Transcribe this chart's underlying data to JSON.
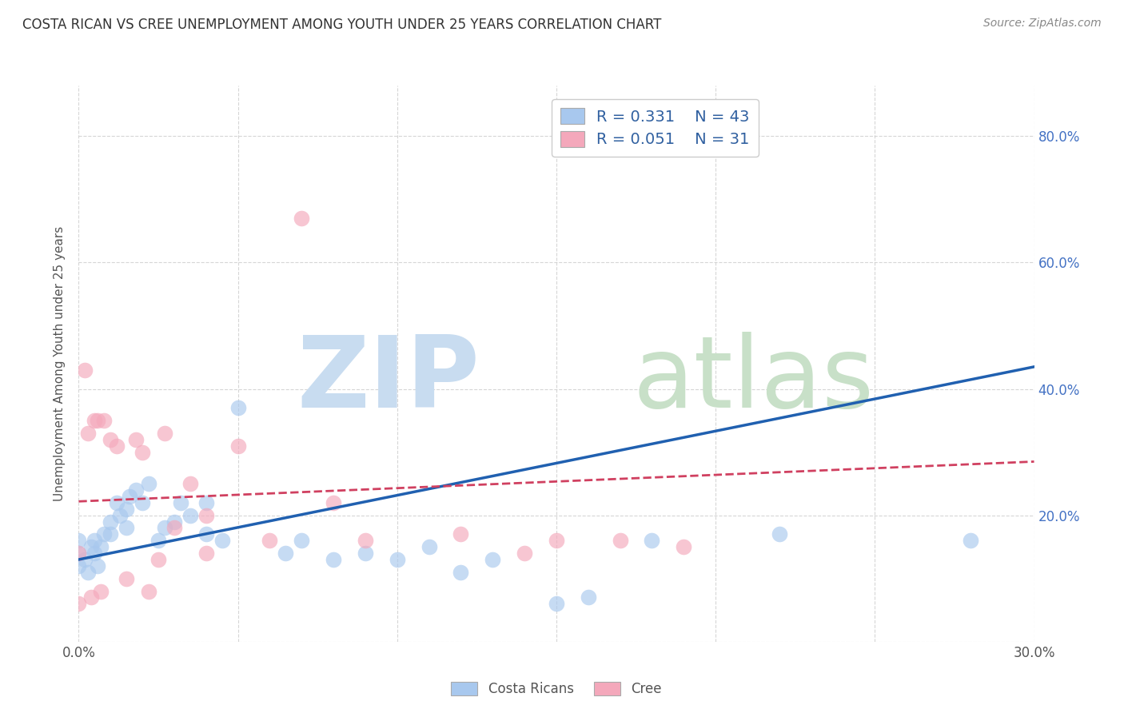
{
  "title": "COSTA RICAN VS CREE UNEMPLOYMENT AMONG YOUTH UNDER 25 YEARS CORRELATION CHART",
  "source": "Source: ZipAtlas.com",
  "ylabel": "Unemployment Among Youth under 25 years",
  "xlim": [
    0.0,
    0.3
  ],
  "ylim": [
    0.0,
    0.88
  ],
  "xticks": [
    0.0,
    0.05,
    0.1,
    0.15,
    0.2,
    0.25,
    0.3
  ],
  "xticklabels": [
    "0.0%",
    "",
    "",
    "",
    "",
    "",
    "30.0%"
  ],
  "yticks": [
    0.0,
    0.2,
    0.4,
    0.6,
    0.8
  ],
  "right_yticks": [
    0.0,
    0.2,
    0.4,
    0.6,
    0.8
  ],
  "right_yticklabels": [
    "",
    "20.0%",
    "40.0%",
    "60.0%",
    "80.0%"
  ],
  "costa_rican_color": "#A8C8EE",
  "cree_color": "#F4A8BB",
  "costa_rican_line_color": "#2060B0",
  "cree_line_color": "#D04060",
  "costa_rican_R": 0.331,
  "costa_rican_N": 43,
  "cree_R": 0.051,
  "cree_N": 31,
  "costa_rican_trend_x": [
    0.0,
    0.3
  ],
  "costa_rican_trend_y": [
    0.13,
    0.435
  ],
  "cree_trend_x": [
    0.0,
    0.3
  ],
  "cree_trend_y": [
    0.222,
    0.285
  ],
  "costa_rican_scatter_x": [
    0.0,
    0.0,
    0.0,
    0.002,
    0.003,
    0.004,
    0.005,
    0.005,
    0.006,
    0.007,
    0.008,
    0.01,
    0.01,
    0.012,
    0.013,
    0.015,
    0.015,
    0.016,
    0.018,
    0.02,
    0.022,
    0.025,
    0.027,
    0.03,
    0.032,
    0.035,
    0.04,
    0.04,
    0.045,
    0.05,
    0.065,
    0.07,
    0.08,
    0.09,
    0.1,
    0.11,
    0.12,
    0.13,
    0.15,
    0.16,
    0.18,
    0.22,
    0.28
  ],
  "costa_rican_scatter_y": [
    0.14,
    0.12,
    0.16,
    0.13,
    0.11,
    0.15,
    0.16,
    0.14,
    0.12,
    0.15,
    0.17,
    0.19,
    0.17,
    0.22,
    0.2,
    0.21,
    0.18,
    0.23,
    0.24,
    0.22,
    0.25,
    0.16,
    0.18,
    0.19,
    0.22,
    0.2,
    0.17,
    0.22,
    0.16,
    0.37,
    0.14,
    0.16,
    0.13,
    0.14,
    0.13,
    0.15,
    0.11,
    0.13,
    0.06,
    0.07,
    0.16,
    0.17,
    0.16
  ],
  "cree_scatter_x": [
    0.0,
    0.0,
    0.002,
    0.003,
    0.004,
    0.005,
    0.006,
    0.007,
    0.008,
    0.01,
    0.012,
    0.015,
    0.018,
    0.02,
    0.022,
    0.025,
    0.027,
    0.03,
    0.035,
    0.04,
    0.04,
    0.05,
    0.06,
    0.07,
    0.08,
    0.09,
    0.12,
    0.14,
    0.15,
    0.17,
    0.19
  ],
  "cree_scatter_y": [
    0.14,
    0.06,
    0.43,
    0.33,
    0.07,
    0.35,
    0.35,
    0.08,
    0.35,
    0.32,
    0.31,
    0.1,
    0.32,
    0.3,
    0.08,
    0.13,
    0.33,
    0.18,
    0.25,
    0.2,
    0.14,
    0.31,
    0.16,
    0.67,
    0.22,
    0.16,
    0.17,
    0.14,
    0.16,
    0.16,
    0.15
  ],
  "background_color": "#FFFFFF",
  "grid_color": "#CCCCCC"
}
